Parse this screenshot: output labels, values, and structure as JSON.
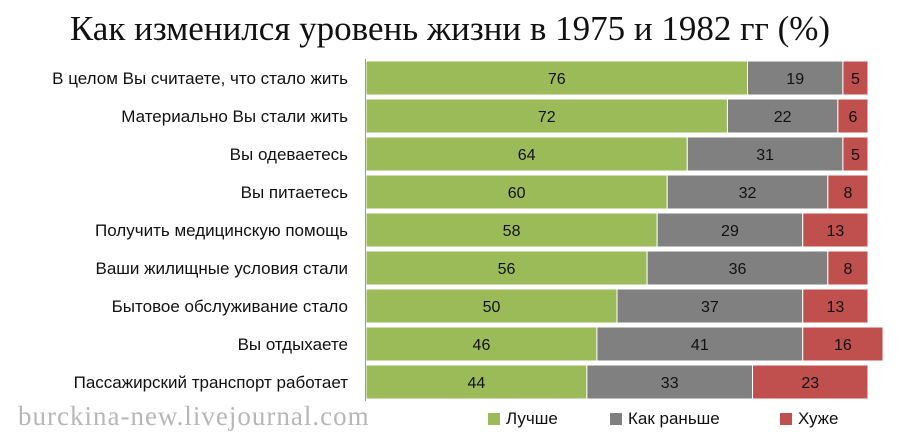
{
  "chart_data": {
    "type": "bar",
    "orientation": "horizontal",
    "stacked": true,
    "title": "Как изменился уровень жизни в 1975 и 1982 гг (%)",
    "xlim": [
      0,
      100
    ],
    "categories": [
      "В целом Вы считаете, что стало жить",
      "Материально Вы стали жить",
      "Вы одеваетесь",
      "Вы питаетесь",
      "Получить медицинскую помощь",
      "Ваши жилищные условия стали",
      "Бытовое обслуживание стало",
      "Вы отдыхаете",
      "Пассажирский транспорт работает"
    ],
    "series": [
      {
        "name": "Лучше",
        "color": "#9bbb59",
        "values": [
          76,
          72,
          64,
          60,
          58,
          56,
          50,
          46,
          44
        ]
      },
      {
        "name": "Как раньше",
        "color": "#808080",
        "values": [
          19,
          22,
          31,
          32,
          29,
          36,
          37,
          41,
          33
        ]
      },
      {
        "name": "Хуже",
        "color": "#c0504d",
        "values": [
          5,
          6,
          5,
          8,
          13,
          8,
          13,
          16,
          23
        ]
      }
    ],
    "legend_position": "bottom",
    "grid": false
  },
  "watermark": "burckina-new.livejournal.com"
}
